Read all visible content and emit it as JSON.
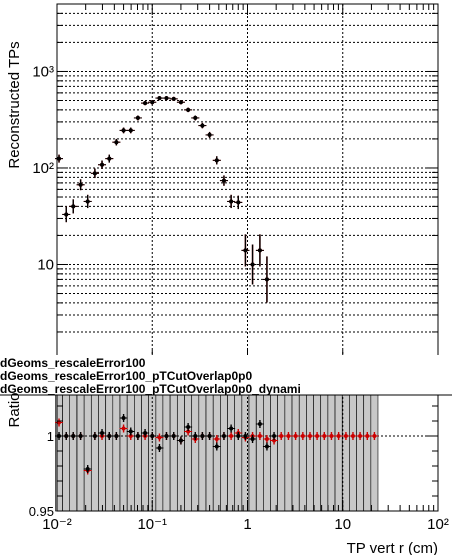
{
  "chart_data": [
    {
      "type": "scatter",
      "panel": "top",
      "ylabel": "Reconstructed TPs",
      "yscale": "log",
      "xscale": "log",
      "xlim": [
        0.01,
        100
      ],
      "ylim": [
        1,
        5000
      ],
      "grid": true,
      "y_tick_labels": [
        {
          "value": 10,
          "label": "10"
        },
        {
          "value": 100,
          "label": "10²"
        },
        {
          "value": 1000,
          "label": "10³"
        }
      ],
      "series": [
        {
          "color": "#cc0000",
          "x": [
            0.0105,
            0.0125,
            0.0148,
            0.0177,
            0.021,
            0.025,
            0.0297,
            0.0354,
            0.042,
            0.05,
            0.0595,
            0.0707,
            0.0841,
            0.1,
            0.119,
            0.141,
            0.168,
            0.2,
            0.238,
            0.283,
            0.336,
            0.4,
            0.476,
            0.566,
            0.673,
            0.8,
            0.951,
            1.13,
            1.35,
            1.6,
            1.9,
            2.26,
            2.69,
            3.2,
            3.81,
            4.53,
            5.38,
            6.4,
            7.61,
            9.05,
            10.8,
            12.8
          ],
          "y": [
            125,
            33,
            40,
            67,
            45,
            88,
            108,
            125,
            185,
            245,
            245,
            330,
            470,
            480,
            530,
            530,
            520,
            480,
            400,
            330,
            275,
            220,
            120,
            74,
            45,
            44,
            14,
            10,
            14,
            7,
            0,
            0,
            0,
            0,
            0,
            0,
            0,
            0,
            0,
            0,
            0,
            0
          ]
        },
        {
          "color": "#000000",
          "x": [
            0.0105,
            0.0125,
            0.0148,
            0.0177,
            0.021,
            0.025,
            0.0297,
            0.0354,
            0.042,
            0.05,
            0.0595,
            0.0707,
            0.0841,
            0.1,
            0.119,
            0.141,
            0.168,
            0.2,
            0.238,
            0.283,
            0.336,
            0.4,
            0.476,
            0.566,
            0.673,
            0.8,
            0.951,
            1.13,
            1.35,
            1.6
          ],
          "y": [
            125,
            33,
            40,
            67,
            45,
            88,
            108,
            125,
            185,
            245,
            245,
            330,
            470,
            480,
            530,
            530,
            520,
            480,
            400,
            330,
            275,
            220,
            120,
            74,
            45,
            44,
            14,
            10,
            14,
            7
          ]
        }
      ]
    },
    {
      "type": "scatter",
      "panel": "bottom",
      "ylabel": "Ratio",
      "xlabel": "TP vert r (cm)",
      "xscale": "log",
      "xlim": [
        0.01,
        100
      ],
      "ylim": [
        0.95,
        1.05
      ],
      "grid": true,
      "x_tick_labels": [
        {
          "value": 0.01,
          "label": "10⁻²"
        },
        {
          "value": 0.1,
          "label": "10⁻¹"
        },
        {
          "value": 1,
          "label": "1"
        },
        {
          "value": 10,
          "label": "10"
        },
        {
          "value": 100,
          "label": "10²"
        }
      ],
      "y_tick_labels": [
        {
          "value": 1,
          "label": "1"
        },
        {
          "value": 0.95,
          "label": "0.95"
        }
      ],
      "legend": [
        "dGeoms_rescaleError100",
        "dGeoms_rescaleError100_pTCutOverlap0p0",
        "dGeoms_rescaleError100_pTCutOverlap0p0_dynami"
      ],
      "series": [
        {
          "color": "#cc0000",
          "x": [
            0.0105,
            0.0125,
            0.0148,
            0.0177,
            0.021,
            0.025,
            0.0297,
            0.0354,
            0.042,
            0.05,
            0.0595,
            0.0707,
            0.0841,
            0.1,
            0.119,
            0.141,
            0.168,
            0.2,
            0.238,
            0.283,
            0.336,
            0.4,
            0.476,
            0.566,
            0.673,
            0.8,
            0.951,
            1.13,
            1.35,
            1.6,
            1.9,
            2.26,
            2.69,
            3.2,
            3.81,
            4.53,
            5.38,
            6.4,
            7.61,
            9.05,
            10.8,
            12.8,
            15.2,
            18.1,
            21.5
          ],
          "y": [
            1.009,
            1.0,
            1.0,
            1.0,
            0.977,
            1.0,
            1.0,
            1.0,
            1.0,
            1.005,
            1.0,
            1.0,
            1.0,
            1.0,
            0.999,
            1.0,
            1.0,
            0.997,
            1.003,
            0.998,
            1.0,
            1.0,
            0.998,
            1.0,
            1.0,
            1.002,
            0.999,
            1.0,
            1.0,
            0.998,
            0.997,
            1.0,
            1.0,
            1.0,
            1.0,
            1.0,
            1.0,
            1.0,
            1.0,
            1.0,
            1.0,
            1.0,
            1.0,
            1.0,
            1.0
          ]
        },
        {
          "color": "#000000",
          "x": [
            0.0105,
            0.0125,
            0.0148,
            0.0177,
            0.021,
            0.025,
            0.0297,
            0.0354,
            0.042,
            0.05,
            0.0595,
            0.0707,
            0.0841,
            0.1,
            0.119,
            0.141,
            0.168,
            0.2,
            0.238,
            0.283,
            0.336,
            0.4,
            0.476,
            0.566,
            0.673,
            0.8,
            0.951,
            1.13,
            1.35,
            1.6,
            1.9
          ],
          "y": [
            1.0,
            1.0,
            1.0,
            1.0,
            0.978,
            1.0,
            1.002,
            1.0,
            1.0,
            1.012,
            1.003,
            1.0,
            1.002,
            1.0,
            0.992,
            1.0,
            1.0,
            0.997,
            1.006,
            1.0,
            1.0,
            1.0,
            0.993,
            1.0,
            1.005,
            1.0,
            1.0,
            0.998,
            1.008,
            0.993,
            1.0
          ]
        }
      ]
    }
  ]
}
